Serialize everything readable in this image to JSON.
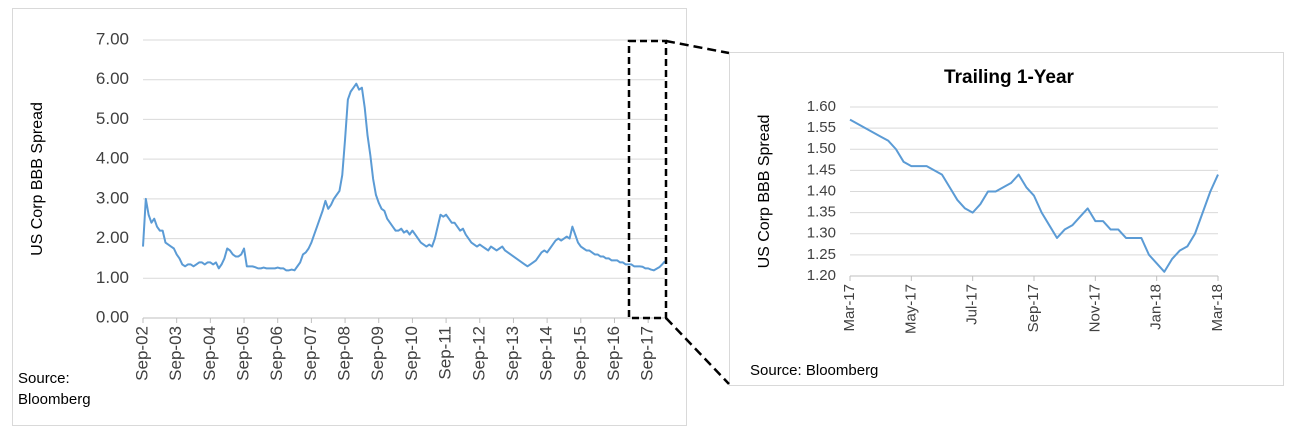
{
  "chart_data": [
    {
      "type": "line",
      "y_label": "US Corp BBB Spread",
      "source": "Source: Bloomberg",
      "color": "#5b9bd5",
      "grid": true,
      "ylim": [
        0,
        7
      ],
      "yticks": [
        {
          "value": 0,
          "label": "0.00"
        },
        {
          "value": 1,
          "label": "1.00"
        },
        {
          "value": 2,
          "label": "2.00"
        },
        {
          "value": 3,
          "label": "3.00"
        },
        {
          "value": 4,
          "label": "4.00"
        },
        {
          "value": 5,
          "label": "5.00"
        },
        {
          "value": 6,
          "label": "6.00"
        },
        {
          "value": 7,
          "label": "7.00"
        }
      ],
      "categories": [
        "Sep-02",
        null,
        null,
        null,
        null,
        null,
        null,
        null,
        null,
        null,
        null,
        null,
        "Sep-03",
        null,
        null,
        null,
        null,
        null,
        null,
        null,
        null,
        null,
        null,
        null,
        "Sep-04",
        null,
        null,
        null,
        null,
        null,
        null,
        null,
        null,
        null,
        null,
        null,
        "Sep-05",
        null,
        null,
        null,
        null,
        null,
        null,
        null,
        null,
        null,
        null,
        null,
        "Sep-06",
        null,
        null,
        null,
        null,
        null,
        null,
        null,
        null,
        null,
        null,
        null,
        "Sep-07",
        null,
        null,
        null,
        null,
        null,
        null,
        null,
        null,
        null,
        null,
        null,
        "Sep-08",
        null,
        null,
        null,
        null,
        null,
        null,
        null,
        null,
        null,
        null,
        null,
        "Sep-09",
        null,
        null,
        null,
        null,
        null,
        null,
        null,
        null,
        null,
        null,
        null,
        "Sep-10",
        null,
        null,
        null,
        null,
        null,
        null,
        null,
        null,
        null,
        null,
        null,
        "Sep-11",
        null,
        null,
        null,
        null,
        null,
        null,
        null,
        null,
        null,
        null,
        null,
        "Sep-12",
        null,
        null,
        null,
        null,
        null,
        null,
        null,
        null,
        null,
        null,
        null,
        "Sep-13",
        null,
        null,
        null,
        null,
        null,
        null,
        null,
        null,
        null,
        null,
        null,
        "Sep-14",
        null,
        null,
        null,
        null,
        null,
        null,
        null,
        null,
        null,
        null,
        null,
        "Sep-15",
        null,
        null,
        null,
        null,
        null,
        null,
        null,
        null,
        null,
        null,
        null,
        "Sep-16",
        null,
        null,
        null,
        null,
        null,
        null,
        null,
        null,
        null,
        null,
        null,
        "Sep-17",
        null,
        null,
        null,
        null,
        null,
        null
      ],
      "values": [
        1.8,
        3.0,
        2.6,
        2.4,
        2.5,
        2.3,
        2.2,
        2.2,
        1.9,
        1.85,
        1.8,
        1.75,
        1.6,
        1.5,
        1.35,
        1.3,
        1.35,
        1.35,
        1.3,
        1.35,
        1.4,
        1.4,
        1.35,
        1.4,
        1.4,
        1.35,
        1.4,
        1.25,
        1.35,
        1.5,
        1.75,
        1.7,
        1.6,
        1.55,
        1.55,
        1.6,
        1.75,
        1.3,
        1.3,
        1.3,
        1.28,
        1.25,
        1.25,
        1.27,
        1.25,
        1.25,
        1.25,
        1.25,
        1.27,
        1.25,
        1.25,
        1.2,
        1.2,
        1.22,
        1.2,
        1.3,
        1.4,
        1.6,
        1.65,
        1.75,
        1.9,
        2.1,
        2.3,
        2.5,
        2.7,
        2.95,
        2.75,
        2.85,
        3.0,
        3.1,
        3.2,
        3.6,
        4.5,
        5.5,
        5.7,
        5.8,
        5.9,
        5.75,
        5.8,
        5.3,
        4.6,
        4.1,
        3.5,
        3.1,
        2.9,
        2.75,
        2.7,
        2.5,
        2.4,
        2.3,
        2.2,
        2.2,
        2.25,
        2.15,
        2.2,
        2.1,
        2.2,
        2.1,
        2.0,
        1.9,
        1.85,
        1.8,
        1.85,
        1.8,
        2.0,
        2.3,
        2.6,
        2.55,
        2.6,
        2.5,
        2.4,
        2.4,
        2.3,
        2.2,
        2.25,
        2.1,
        2.0,
        1.9,
        1.85,
        1.8,
        1.85,
        1.8,
        1.75,
        1.7,
        1.8,
        1.75,
        1.7,
        1.75,
        1.8,
        1.7,
        1.65,
        1.6,
        1.55,
        1.5,
        1.45,
        1.4,
        1.35,
        1.3,
        1.35,
        1.4,
        1.45,
        1.55,
        1.65,
        1.7,
        1.65,
        1.75,
        1.85,
        1.95,
        2.0,
        1.95,
        2.0,
        2.05,
        2.0,
        2.3,
        2.1,
        1.9,
        1.8,
        1.75,
        1.7,
        1.7,
        1.65,
        1.6,
        1.6,
        1.55,
        1.55,
        1.5,
        1.5,
        1.45,
        1.45,
        1.45,
        1.4,
        1.4,
        1.35,
        1.35,
        1.35,
        1.3,
        1.3,
        1.3,
        1.29,
        1.25,
        1.25,
        1.22,
        1.2,
        1.24,
        1.28,
        1.35,
        1.43
      ]
    },
    {
      "type": "line",
      "title": "Trailing 1-Year",
      "y_label": "US Corp BBB Spread",
      "source": "Source: Bloomberg",
      "color": "#5b9bd5",
      "grid": true,
      "ylim": [
        1.2,
        1.6
      ],
      "yticks": [
        {
          "value": 1.2,
          "label": "1.20"
        },
        1.25,
        {
          "value": 1.3,
          "label": "1.30"
        },
        1.35,
        {
          "value": 1.4,
          "label": "1.40"
        },
        1.45,
        {
          "value": 1.5,
          "label": "1.50"
        },
        1.55,
        {
          "value": 1.6,
          "label": "1.60"
        }
      ],
      "categories": [
        "Mar-17",
        null,
        null,
        null,
        null,
        null,
        null,
        null,
        "May-17",
        null,
        null,
        null,
        null,
        null,
        null,
        null,
        "Jul-17",
        null,
        null,
        null,
        null,
        null,
        null,
        null,
        "Sep-17",
        null,
        null,
        null,
        null,
        null,
        null,
        null,
        "Nov-17",
        null,
        null,
        null,
        null,
        null,
        null,
        null,
        "Jan-18",
        null,
        null,
        null,
        null,
        null,
        null,
        null,
        "Mar-18"
      ],
      "values": [
        1.57,
        1.56,
        1.55,
        1.54,
        1.53,
        1.52,
        1.5,
        1.47,
        1.46,
        1.46,
        1.46,
        1.45,
        1.44,
        1.41,
        1.38,
        1.36,
        1.35,
        1.37,
        1.4,
        1.4,
        1.41,
        1.42,
        1.44,
        1.41,
        1.39,
        1.35,
        1.32,
        1.29,
        1.31,
        1.32,
        1.34,
        1.36,
        1.33,
        1.33,
        1.31,
        1.31,
        1.29,
        1.29,
        1.29,
        1.25,
        1.23,
        1.21,
        1.24,
        1.26,
        1.27,
        1.3,
        1.35,
        1.4,
        1.44
      ]
    }
  ]
}
